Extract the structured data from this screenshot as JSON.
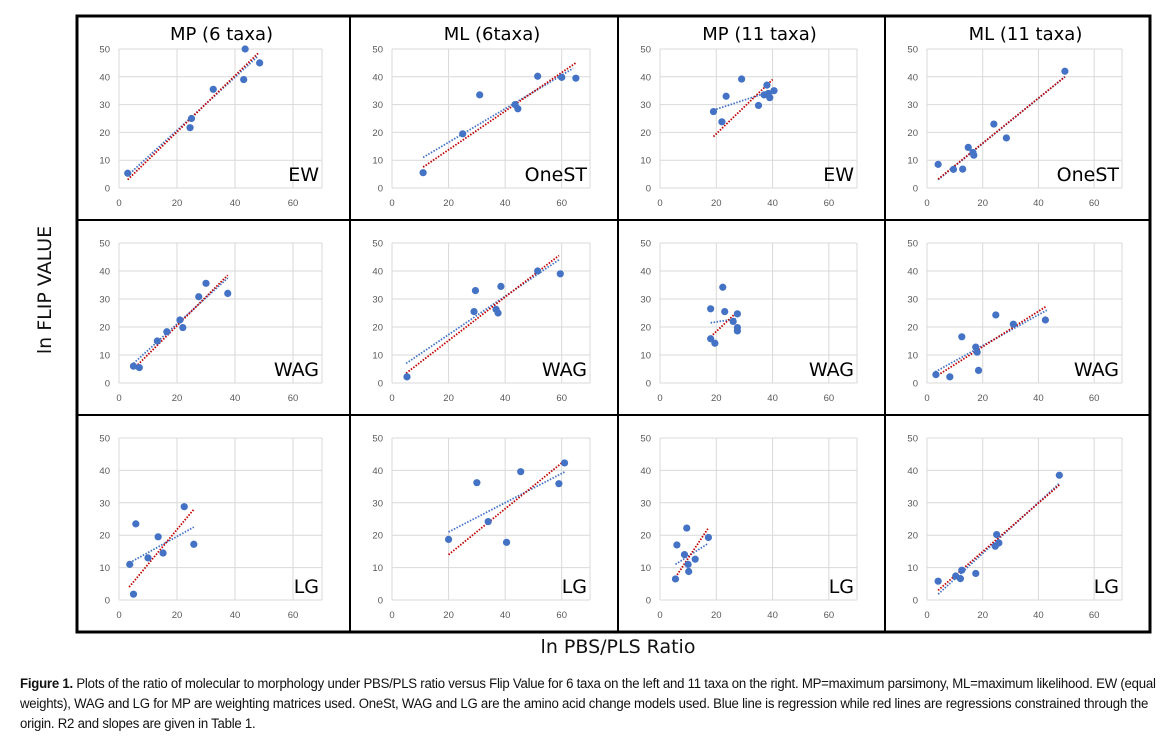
{
  "figure": {
    "y_axis_label": "ln FLIP VALUE",
    "x_axis_label": "ln PBS/PLS Ratio",
    "caption_bold": "Figure 1.",
    "caption_text": " Plots of the ratio of molecular to morphology under PBS/PLS ratio versus Flip Value for 6 taxa on the left and 11 taxa on the right. MP=maximum parsimony, ML=maximum likelihood. EW (equal weights), WAG and LG for MP are weighting matrices used. OneSt, WAG and LG are the amino acid change models used. Blue line is regression while red lines are regressions constrained through the origin. R2 and slopes are given in Table 1."
  },
  "colors": {
    "points": "#4472c4",
    "regression": "#4472c4",
    "origin_regression": "#c00000",
    "grid": "#d9d9d9",
    "frame": "#000000"
  },
  "chart_data": [
    {
      "type": "scatter",
      "title": "MP (6 taxa)",
      "label": "EW",
      "xlim": [
        0,
        70
      ],
      "ylim": [
        0,
        50
      ],
      "xticks": [
        "0",
        "20",
        "40",
        "60"
      ],
      "yticks": [
        "0",
        "10",
        "20",
        "30",
        "40",
        "50"
      ],
      "x": [
        3,
        24.5,
        25,
        32.5,
        43,
        43.5,
        48.5
      ],
      "y": [
        5.3,
        21.7,
        25,
        35.5,
        39,
        50,
        45
      ],
      "regression": {
        "x": [
          3,
          48
        ],
        "y": [
          4.5,
          47.5
        ]
      },
      "origin_regression": {
        "x": [
          3,
          48
        ],
        "y": [
          3,
          48.5
        ]
      }
    },
    {
      "type": "scatter",
      "title": "ML (6taxa)",
      "label": "OneST",
      "xlim": [
        0,
        70
      ],
      "ylim": [
        0,
        50
      ],
      "xticks": [
        "0",
        "20",
        "40",
        "60"
      ],
      "yticks": [
        "0",
        "10",
        "20",
        "30",
        "40",
        "50"
      ],
      "x": [
        11,
        25,
        31,
        43.5,
        44.5,
        51.5,
        60,
        65
      ],
      "y": [
        5.5,
        19.5,
        33.5,
        30,
        28.5,
        40.2,
        39.8,
        39.5
      ],
      "regression": {
        "x": [
          11,
          64
        ],
        "y": [
          11,
          43
        ]
      },
      "origin_regression": {
        "x": [
          11,
          65
        ],
        "y": [
          7.5,
          45
        ]
      }
    },
    {
      "type": "scatter",
      "title": "MP (11 taxa)",
      "label": "EW",
      "xlim": [
        0,
        70
      ],
      "ylim": [
        0,
        50
      ],
      "xticks": [
        "0",
        "20",
        "40",
        "60"
      ],
      "yticks": [
        "0",
        "10",
        "20",
        "30",
        "40",
        "50"
      ],
      "x": [
        19,
        22,
        23.5,
        29,
        35,
        37,
        38,
        38.5,
        39,
        40.5
      ],
      "y": [
        27.5,
        23.8,
        33,
        39.2,
        29.7,
        33.5,
        37,
        34,
        32.5,
        35
      ],
      "regression": {
        "x": [
          19,
          40
        ],
        "y": [
          28,
          35
        ]
      },
      "origin_regression": {
        "x": [
          19,
          40
        ],
        "y": [
          18.5,
          39
        ]
      }
    },
    {
      "type": "scatter",
      "title": "ML (11 taxa)",
      "label": "OneST",
      "xlim": [
        0,
        70
      ],
      "ylim": [
        0,
        50
      ],
      "xticks": [
        "0",
        "20",
        "40",
        "60"
      ],
      "yticks": [
        "0",
        "10",
        "20",
        "30",
        "40",
        "50"
      ],
      "x": [
        4,
        9.5,
        12.8,
        14.8,
        16.5,
        16.8,
        24,
        28.5,
        49.5
      ],
      "y": [
        8.5,
        6.7,
        6.8,
        14.6,
        12.8,
        11.8,
        23,
        18,
        42
      ],
      "regression": {
        "x": [
          4,
          49.5
        ],
        "y": [
          3,
          40
        ]
      },
      "origin_regression": {
        "x": [
          4,
          49.5
        ],
        "y": [
          3.2,
          40
        ]
      }
    },
    {
      "type": "scatter",
      "title": "",
      "label": "WAG",
      "xlim": [
        0,
        70
      ],
      "ylim": [
        0,
        50
      ],
      "xticks": [
        "0",
        "20",
        "40",
        "60"
      ],
      "yticks": [
        "0",
        "10",
        "20",
        "30",
        "40",
        "50"
      ],
      "x": [
        5,
        7,
        13.2,
        16.5,
        21,
        22,
        27.5,
        30,
        37.5
      ],
      "y": [
        6,
        5.5,
        15,
        18.3,
        22.5,
        19.8,
        30.8,
        35.6,
        32
      ],
      "regression": {
        "x": [
          5,
          37.5
        ],
        "y": [
          7,
          37.5
        ]
      },
      "origin_regression": {
        "x": [
          5,
          37.5
        ],
        "y": [
          5,
          38.5
        ]
      }
    },
    {
      "type": "scatter",
      "title": "",
      "label": "WAG",
      "xlim": [
        0,
        70
      ],
      "ylim": [
        0,
        50
      ],
      "xticks": [
        "0",
        "20",
        "40",
        "60"
      ],
      "yticks": [
        "0",
        "10",
        "20",
        "30",
        "40",
        "50"
      ],
      "x": [
        5.3,
        29,
        29.5,
        36.8,
        37.5,
        38.5,
        51.5,
        59.5
      ],
      "y": [
        2.2,
        25.5,
        33,
        26.3,
        25,
        34.5,
        40,
        39
      ],
      "regression": {
        "x": [
          5,
          59
        ],
        "y": [
          7,
          44
        ]
      },
      "origin_regression": {
        "x": [
          5,
          59
        ],
        "y": [
          3.5,
          45.5
        ]
      }
    },
    {
      "type": "scatter",
      "title": "",
      "label": "WAG",
      "xlim": [
        0,
        70
      ],
      "ylim": [
        0,
        50
      ],
      "xticks": [
        "0",
        "20",
        "40",
        "60"
      ],
      "yticks": [
        "0",
        "10",
        "20",
        "30",
        "40",
        "50"
      ],
      "x": [
        18,
        18,
        19.5,
        22.3,
        23,
        26,
        27.5,
        27.5,
        27.5
      ],
      "y": [
        26.5,
        15.8,
        14.2,
        34.2,
        25.5,
        22,
        24.7,
        19.8,
        18.6
      ],
      "regression": {
        "x": [
          18,
          27.5
        ],
        "y": [
          21.5,
          23
        ]
      },
      "origin_regression": {
        "x": [
          18,
          27.5
        ],
        "y": [
          16.5,
          25.5
        ]
      }
    },
    {
      "type": "scatter",
      "title": "",
      "label": "WAG",
      "xlim": [
        0,
        70
      ],
      "ylim": [
        0,
        50
      ],
      "xticks": [
        "0",
        "20",
        "40",
        "60"
      ],
      "yticks": [
        "0",
        "10",
        "20",
        "30",
        "40",
        "50"
      ],
      "x": [
        3.2,
        8.2,
        12.5,
        17.5,
        18,
        18.5,
        24.7,
        31,
        42.5
      ],
      "y": [
        3,
        2.2,
        16.5,
        12.8,
        11,
        4.5,
        24.3,
        21,
        22.5
      ],
      "regression": {
        "x": [
          3,
          43
        ],
        "y": [
          4,
          26
        ]
      },
      "origin_regression": {
        "x": [
          3,
          43
        ],
        "y": [
          2.2,
          27.5
        ]
      }
    },
    {
      "type": "scatter",
      "title": "",
      "label": "LG",
      "xlim": [
        0,
        70
      ],
      "ylim": [
        0,
        50
      ],
      "xticks": [
        "0",
        "20",
        "40",
        "60"
      ],
      "yticks": [
        "0",
        "10",
        "20",
        "30",
        "40",
        "50"
      ],
      "x": [
        3.7,
        5,
        5.8,
        10,
        13.5,
        15.2,
        22.5,
        25.8
      ],
      "y": [
        11,
        1.8,
        23.5,
        13,
        19.5,
        14.5,
        28.8,
        17.2
      ],
      "regression": {
        "x": [
          3.7,
          25.8
        ],
        "y": [
          11.5,
          22.5
        ]
      },
      "origin_regression": {
        "x": [
          3.5,
          25.8
        ],
        "y": [
          4,
          28
        ]
      }
    },
    {
      "type": "scatter",
      "title": "",
      "label": "LG",
      "xlim": [
        0,
        70
      ],
      "ylim": [
        0,
        50
      ],
      "xticks": [
        "0",
        "20",
        "40",
        "60"
      ],
      "yticks": [
        "0",
        "10",
        "20",
        "30",
        "40",
        "50"
      ],
      "x": [
        20,
        30,
        34,
        40.5,
        45.5,
        59,
        61
      ],
      "y": [
        18.7,
        36.2,
        24.2,
        17.8,
        39.6,
        35.9,
        42.3
      ],
      "regression": {
        "x": [
          20,
          61
        ],
        "y": [
          21,
          39.5
        ]
      },
      "origin_regression": {
        "x": [
          20,
          61
        ],
        "y": [
          14,
          43
        ]
      }
    },
    {
      "type": "scatter",
      "title": "",
      "label": "LG",
      "xlim": [
        0,
        70
      ],
      "ylim": [
        0,
        50
      ],
      "xticks": [
        "0",
        "20",
        "40",
        "60"
      ],
      "yticks": [
        "0",
        "10",
        "20",
        "30",
        "40",
        "50"
      ],
      "x": [
        5.5,
        6,
        8.7,
        9.5,
        10,
        10.2,
        12.5,
        17.2
      ],
      "y": [
        6.5,
        17,
        14,
        22.2,
        11,
        8.8,
        12.6,
        19.3
      ],
      "regression": {
        "x": [
          5.5,
          17.2
        ],
        "y": [
          11,
          17.5
        ]
      },
      "origin_regression": {
        "x": [
          5.5,
          17
        ],
        "y": [
          7,
          22
        ]
      }
    },
    {
      "type": "scatter",
      "title": "",
      "label": "LG",
      "xlim": [
        0,
        70
      ],
      "ylim": [
        0,
        50
      ],
      "xticks": [
        "0",
        "20",
        "40",
        "60"
      ],
      "yticks": [
        "0",
        "10",
        "20",
        "30",
        "40",
        "50"
      ],
      "x": [
        4,
        10.3,
        12,
        12.5,
        17.5,
        24.5,
        25,
        25.8,
        47.5
      ],
      "y": [
        5.8,
        7.4,
        6.6,
        9.2,
        8.2,
        16.6,
        20.2,
        17.6,
        38.5
      ],
      "regression": {
        "x": [
          4,
          47.5
        ],
        "y": [
          1.8,
          36
        ]
      },
      "origin_regression": {
        "x": [
          4,
          47.5
        ],
        "y": [
          3,
          35.5
        ]
      }
    }
  ]
}
